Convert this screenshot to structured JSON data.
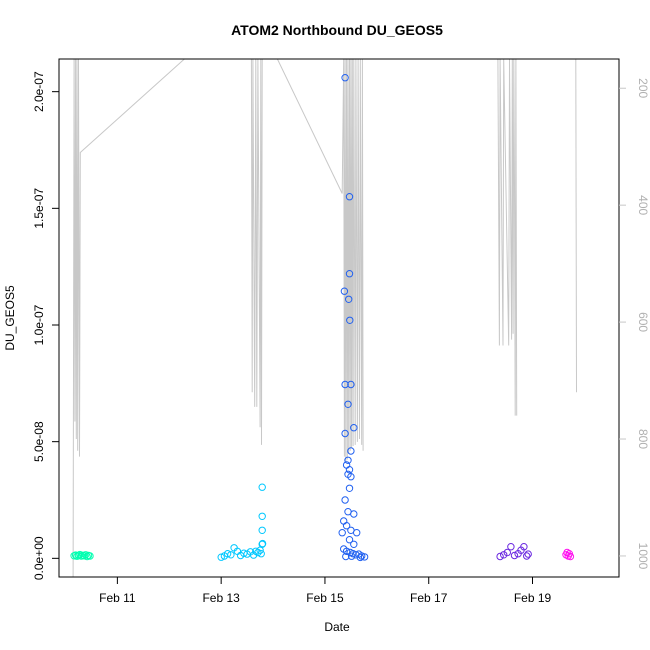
{
  "chart_data": {
    "type": "scatter",
    "title": "ATOM2 Northbound DU_GEOS5",
    "xlabel": "Date",
    "ylabel": "DU_GEOS5",
    "x_ticks": [
      {
        "value": "2017-02-11",
        "label": "Feb 11"
      },
      {
        "value": "2017-02-13",
        "label": "Feb 13"
      },
      {
        "value": "2017-02-15",
        "label": "Feb 15"
      },
      {
        "value": "2017-02-17",
        "label": "Feb 17"
      },
      {
        "value": "2017-02-19",
        "label": "Feb 19"
      }
    ],
    "xlim": [
      "2017-02-09T21:00",
      "2017-02-20T16:00"
    ],
    "ylim": [
      -8e-09,
      2.14e-07
    ],
    "y_ticks": [
      {
        "value": 0,
        "label": "0.0e+00"
      },
      {
        "value": 5e-08,
        "label": "5.0e-08"
      },
      {
        "value": 1e-07,
        "label": "1.0e-07"
      },
      {
        "value": 1.5e-07,
        "label": "1.5e-07"
      },
      {
        "value": 2e-07,
        "label": "2.0e-07"
      }
    ],
    "y2_ticks": [
      {
        "value": 200,
        "label": "200"
      },
      {
        "value": 400,
        "label": "400"
      },
      {
        "value": 600,
        "label": "600"
      },
      {
        "value": 800,
        "label": "800"
      },
      {
        "value": 1000,
        "label": "1000"
      }
    ],
    "y2lim": [
      1036,
      150
    ],
    "y2_color": "#c8c8c8",
    "series": [
      {
        "color": "#00ffb0",
        "points": [
          [
            "2017-02-10T04:00",
            1.1e-09
          ],
          [
            "2017-02-10T04:40",
            1.4e-09
          ],
          [
            "2017-02-10T05:20",
            9e-10
          ],
          [
            "2017-02-10T06:00",
            1.2e-09
          ],
          [
            "2017-02-10T06:40",
            1.6e-09
          ],
          [
            "2017-02-10T07:20",
            1e-09
          ],
          [
            "2017-02-10T08:00",
            1.3e-09
          ],
          [
            "2017-02-10T08:40",
            1.1e-09
          ],
          [
            "2017-02-10T09:20",
            1.5e-09
          ],
          [
            "2017-02-10T10:00",
            8e-10
          ],
          [
            "2017-02-10T10:40",
            1.2e-09
          ],
          [
            "2017-02-10T11:20",
            1e-09
          ]
        ]
      },
      {
        "color": "#00c8ff",
        "points": [
          [
            "2017-02-13T00:00",
            5e-10
          ],
          [
            "2017-02-13T01:30",
            1e-09
          ],
          [
            "2017-02-13T03:00",
            2e-09
          ],
          [
            "2017-02-13T04:30",
            1.5e-09
          ],
          [
            "2017-02-13T06:00",
            4.5e-09
          ],
          [
            "2017-02-13T07:30",
            3e-09
          ],
          [
            "2017-02-13T09:00",
            1.2e-09
          ],
          [
            "2017-02-13T10:30",
            2.2e-09
          ],
          [
            "2017-02-13T12:00",
            1.8e-09
          ],
          [
            "2017-02-13T13:30",
            2.8e-09
          ],
          [
            "2017-02-13T15:00",
            1.4e-09
          ],
          [
            "2017-02-13T16:00",
            3e-09
          ],
          [
            "2017-02-13T17:00",
            2.5e-09
          ],
          [
            "2017-02-13T18:00",
            3.5e-09
          ],
          [
            "2017-02-13T18:30",
            2e-09
          ],
          [
            "2017-02-13T19:00",
            6e-09
          ],
          [
            "2017-02-13T19:10",
            6.3e-09
          ],
          [
            "2017-02-13T19:00",
            1.2e-08
          ],
          [
            "2017-02-13T19:00",
            1.8e-08
          ],
          [
            "2017-02-13T19:00",
            3.05e-08
          ]
        ]
      },
      {
        "color": "#2060f0",
        "points": [
          [
            "2017-02-15T09:20",
            2.06e-07
          ],
          [
            "2017-02-15T11:20",
            1.55e-07
          ],
          [
            "2017-02-15T11:20",
            1.22e-07
          ],
          [
            "2017-02-15T09:00",
            1.145e-07
          ],
          [
            "2017-02-15T11:00",
            1.11e-07
          ],
          [
            "2017-02-15T11:30",
            1.02e-07
          ],
          [
            "2017-02-15T09:20",
            7.45e-08
          ],
          [
            "2017-02-15T12:00",
            7.45e-08
          ],
          [
            "2017-02-15T10:40",
            6.6e-08
          ],
          [
            "2017-02-15T13:20",
            5.6e-08
          ],
          [
            "2017-02-15T09:20",
            5.35e-08
          ],
          [
            "2017-02-15T12:00",
            4.6e-08
          ],
          [
            "2017-02-15T10:40",
            4.2e-08
          ],
          [
            "2017-02-15T10:00",
            4e-08
          ],
          [
            "2017-02-15T11:20",
            3.8e-08
          ],
          [
            "2017-02-15T10:40",
            3.6e-08
          ],
          [
            "2017-02-15T12:00",
            3.5e-08
          ],
          [
            "2017-02-15T11:20",
            3e-08
          ],
          [
            "2017-02-15T09:20",
            2.5e-08
          ],
          [
            "2017-02-15T10:40",
            2e-08
          ],
          [
            "2017-02-15T13:20",
            1.9e-08
          ],
          [
            "2017-02-15T08:40",
            1.6e-08
          ],
          [
            "2017-02-15T10:00",
            1.4e-08
          ],
          [
            "2017-02-15T12:00",
            1.2e-08
          ],
          [
            "2017-02-15T08:00",
            1.1e-08
          ],
          [
            "2017-02-15T14:40",
            1.1e-08
          ],
          [
            "2017-02-15T11:20",
            8e-09
          ],
          [
            "2017-02-15T13:20",
            6e-09
          ],
          [
            "2017-02-15T08:40",
            4e-09
          ],
          [
            "2017-02-15T10:00",
            3e-09
          ],
          [
            "2017-02-15T11:40",
            2.5e-09
          ],
          [
            "2017-02-15T13:00",
            2e-09
          ],
          [
            "2017-02-15T14:20",
            1.5e-09
          ],
          [
            "2017-02-15T15:40",
            1.8e-09
          ],
          [
            "2017-02-15T17:00",
            1e-09
          ],
          [
            "2017-02-15T18:20",
            6e-10
          ],
          [
            "2017-02-15T09:40",
            8e-10
          ],
          [
            "2017-02-15T12:20",
            9e-10
          ],
          [
            "2017-02-15T16:20",
            4e-10
          ]
        ]
      },
      {
        "color": "#6a28e0",
        "points": [
          [
            "2017-02-18T09:00",
            8e-10
          ],
          [
            "2017-02-18T10:40",
            1.5e-09
          ],
          [
            "2017-02-18T12:20",
            2.5e-09
          ],
          [
            "2017-02-18T14:00",
            5e-09
          ],
          [
            "2017-02-18T15:40",
            1.2e-09
          ],
          [
            "2017-02-18T17:20",
            2e-09
          ],
          [
            "2017-02-18T18:40",
            3.5e-09
          ],
          [
            "2017-02-18T20:00",
            5e-09
          ],
          [
            "2017-02-18T21:20",
            1e-09
          ],
          [
            "2017-02-18T22:00",
            1.8e-09
          ]
        ]
      },
      {
        "color": "#ff10f0",
        "points": [
          [
            "2017-02-19T15:30",
            1.5e-09
          ],
          [
            "2017-02-19T16:00",
            2.5e-09
          ],
          [
            "2017-02-19T16:30",
            1e-09
          ],
          [
            "2017-02-19T17:00",
            2e-09
          ],
          [
            "2017-02-19T17:30",
            8e-10
          ]
        ]
      }
    ],
    "secondary_lines": [
      [
        [
          "2017-02-10T03:30",
          1036
        ],
        [
          "2017-02-10T04:00",
          150
        ],
        [
          "2017-02-10T04:20",
          770
        ],
        [
          "2017-02-10T04:40",
          150
        ],
        [
          "2017-02-10T05:00",
          800
        ],
        [
          "2017-02-10T05:20",
          150
        ],
        [
          "2017-02-10T05:40",
          820
        ],
        [
          "2017-02-10T06:00",
          150
        ],
        [
          "2017-02-10T06:30",
          830
        ],
        [
          "2017-02-10T06:50",
          310
        ],
        [
          "2017-02-12T07:00",
          150
        ]
      ],
      [
        [
          "2017-02-13T13:00",
          150
        ],
        [
          "2017-02-13T14:00",
          150
        ],
        [
          "2017-02-13T14:20",
          720
        ],
        [
          "2017-02-13T14:40",
          150
        ],
        [
          "2017-02-13T15:30",
          745
        ],
        [
          "2017-02-13T16:00",
          150
        ],
        [
          "2017-02-13T16:30",
          745
        ],
        [
          "2017-02-13T17:00",
          150
        ],
        [
          "2017-02-13T18:00",
          780
        ],
        [
          "2017-02-13T18:20",
          150
        ],
        [
          "2017-02-13T18:40",
          810
        ],
        [
          "2017-02-13T19:00",
          150
        ],
        [
          "2017-02-14T02:00",
          150
        ],
        [
          "2017-02-15T08:00",
          380
        ],
        [
          "2017-02-15T08:40",
          150
        ],
        [
          "2017-02-15T09:00",
          830
        ],
        [
          "2017-02-15T09:20",
          150
        ],
        [
          "2017-02-15T09:40",
          840
        ],
        [
          "2017-02-15T10:00",
          150
        ],
        [
          "2017-02-15T10:20",
          835
        ],
        [
          "2017-02-15T10:40",
          150
        ],
        [
          "2017-02-15T11:00",
          825
        ],
        [
          "2017-02-15T11:20",
          150
        ],
        [
          "2017-02-15T11:40",
          820
        ],
        [
          "2017-02-15T12:00",
          150
        ],
        [
          "2017-02-15T12:20",
          815
        ],
        [
          "2017-02-15T12:40",
          150
        ],
        [
          "2017-02-15T13:00",
          812
        ],
        [
          "2017-02-15T13:20",
          150
        ],
        [
          "2017-02-15T14:00",
          810
        ],
        [
          "2017-02-15T14:20",
          150
        ],
        [
          "2017-02-15T15:00",
          805
        ],
        [
          "2017-02-15T15:20",
          150
        ],
        [
          "2017-02-15T16:00",
          800
        ],
        [
          "2017-02-15T16:20",
          150
        ],
        [
          "2017-02-15T17:00",
          810
        ],
        [
          "2017-02-15T17:20",
          150
        ],
        [
          "2017-02-15T17:40",
          820
        ]
      ],
      [
        [
          "2017-02-18T08:00",
          150
        ],
        [
          "2017-02-18T08:40",
          640
        ],
        [
          "2017-02-18T09:00",
          150
        ],
        [
          "2017-02-18T10:20",
          640
        ],
        [
          "2017-02-18T10:40",
          150
        ],
        [
          "2017-02-18T13:00",
          640
        ],
        [
          "2017-02-18T13:20",
          150
        ],
        [
          "2017-02-18T14:20",
          630
        ],
        [
          "2017-02-18T14:40",
          150
        ],
        [
          "2017-02-18T15:00",
          620
        ],
        [
          "2017-02-18T15:20",
          150
        ],
        [
          "2017-02-18T15:40",
          365
        ],
        [
          "2017-02-18T16:00",
          760
        ],
        [
          "2017-02-18T16:20",
          150
        ],
        [
          "2017-02-18T16:40",
          760
        ]
      ],
      [
        [
          "2017-02-19T20:00",
          150
        ],
        [
          "2017-02-19T20:20",
          720
        ]
      ]
    ]
  }
}
